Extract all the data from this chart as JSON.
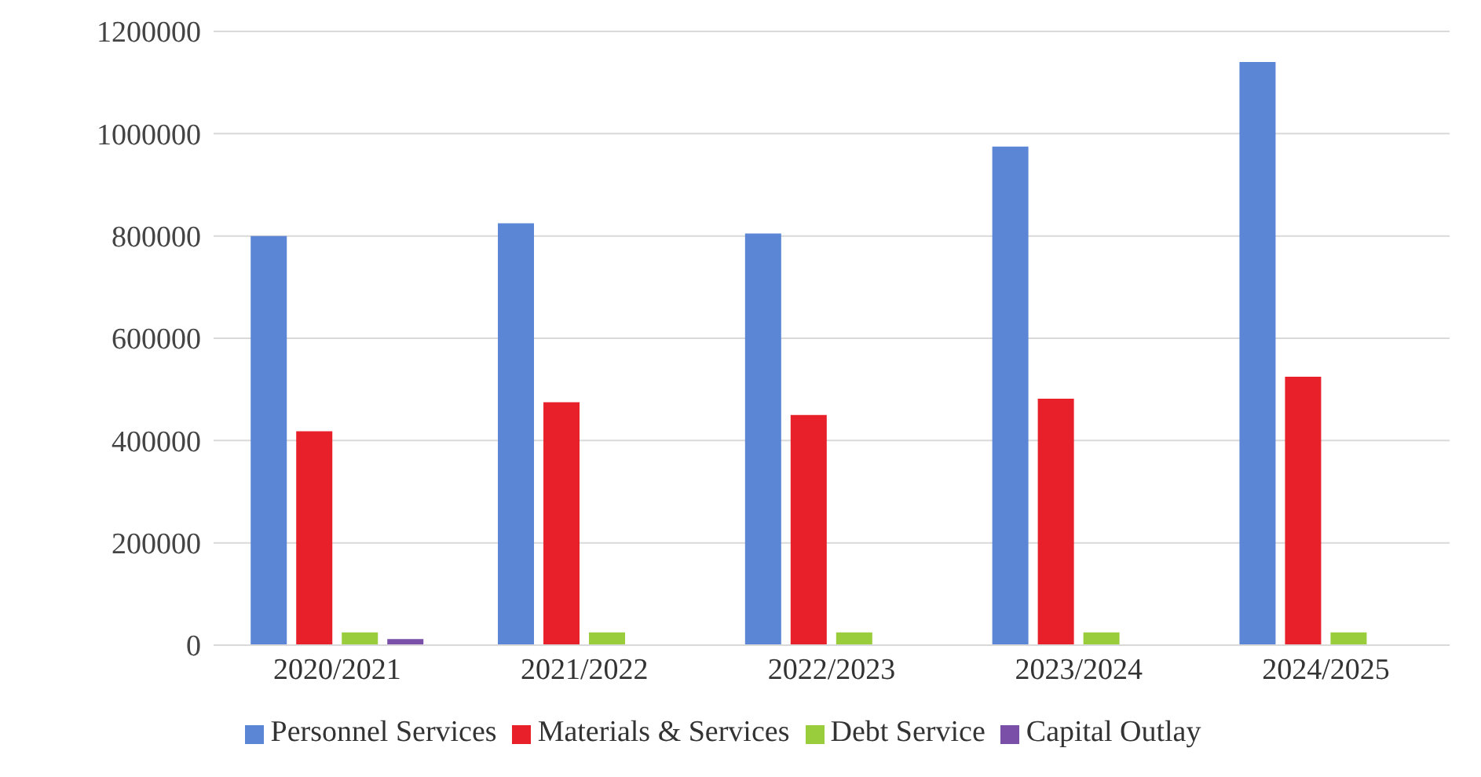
{
  "chart_data": {
    "type": "bar",
    "categories": [
      "2020/2021",
      "2021/2022",
      "2022/2023",
      "2023/2024",
      "2024/2025"
    ],
    "series": [
      {
        "name": "Personnel Services",
        "color": "#5b86d6",
        "values": [
          800000,
          825000,
          805000,
          975000,
          1140000
        ]
      },
      {
        "name": "Materials & Services",
        "color": "#e8202a",
        "values": [
          418000,
          475000,
          450000,
          482000,
          525000
        ]
      },
      {
        "name": "Debt Service",
        "color": "#9acd3c",
        "values": [
          25000,
          25000,
          25000,
          25000,
          25000
        ]
      },
      {
        "name": "Capital Outlay",
        "color": "#7a4fa8",
        "values": [
          12000,
          0,
          0,
          0,
          0
        ]
      }
    ],
    "ylim": [
      0,
      1200000
    ],
    "yticks": [
      0,
      200000,
      400000,
      600000,
      800000,
      1000000,
      1200000
    ],
    "grid": "y",
    "legend": "bottom"
  }
}
